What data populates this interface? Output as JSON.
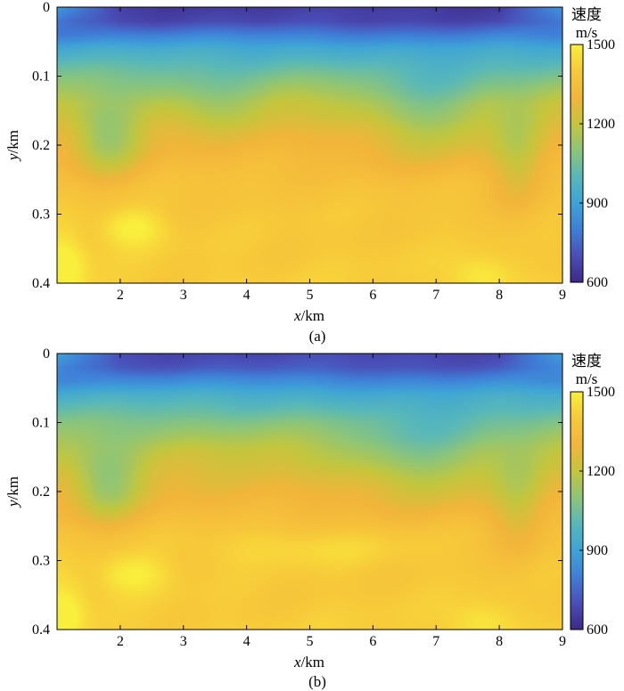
{
  "colors": {
    "colormap": [
      "#3e2a87",
      "#4a4fb8",
      "#3f7fd8",
      "#3ea4d6",
      "#58b8b9",
      "#8cc57a",
      "#c4c63d",
      "#f2b53a",
      "#f7c93a",
      "#f9ee3b"
    ],
    "axis": "#000000"
  },
  "chart_data": [
    {
      "type": "heatmap",
      "panel_label": "(a)",
      "xlabel": {
        "var": "x",
        "unit": "/km"
      },
      "ylabel": {
        "var": "y",
        "unit": "/km"
      },
      "xlim": [
        1,
        9
      ],
      "ylim": [
        0,
        0.4
      ],
      "y_reversed": true,
      "xticks": [
        2,
        3,
        4,
        5,
        6,
        7,
        8,
        9
      ],
      "yticks": [
        "0",
        "0.1",
        "0.2",
        "0.3",
        "0.4"
      ],
      "colorbar": {
        "title": "速度",
        "unit": "m/s",
        "range": [
          600,
          1500
        ],
        "ticks": [
          600,
          900,
          1200,
          1500
        ]
      },
      "field": {
        "description_free": true,
        "profile_depth_km": [
          0,
          0.02,
          0.06,
          0.1,
          0.14,
          0.18,
          0.22,
          0.26,
          0.3,
          0.35,
          0.4
        ],
        "profile_velocity_ms": [
          650,
          680,
          930,
          1080,
          1220,
          1290,
          1330,
          1370,
          1390,
          1400,
          1410
        ],
        "anomalies": [
          {
            "x": 2.2,
            "y": 0.32,
            "dv": 120,
            "sx": 0.35,
            "sy": 0.02
          },
          {
            "x": 1.1,
            "y": 0.38,
            "dv": 140,
            "sx": 0.25,
            "sy": 0.04
          },
          {
            "x": 7.7,
            "y": 0.39,
            "dv": 90,
            "sx": 0.35,
            "sy": 0.02
          },
          {
            "x": 1.8,
            "y": 0.19,
            "dv": -180,
            "sx": 0.4,
            "sy": 0.04
          },
          {
            "x": 6.9,
            "y": 0.15,
            "dv": -140,
            "sx": 0.7,
            "sy": 0.05
          },
          {
            "x": 8.3,
            "y": 0.22,
            "dv": -120,
            "sx": 0.3,
            "sy": 0.06
          },
          {
            "x": 3.5,
            "y": 0.14,
            "dv": -90,
            "sx": 0.6,
            "sy": 0.03
          }
        ]
      }
    },
    {
      "type": "heatmap",
      "panel_label": "(b)",
      "xlabel": {
        "var": "x",
        "unit": "/km"
      },
      "ylabel": {
        "var": "y",
        "unit": "/km"
      },
      "xlim": [
        1,
        9
      ],
      "ylim": [
        0,
        0.4
      ],
      "y_reversed": true,
      "xticks": [
        2,
        3,
        4,
        5,
        6,
        7,
        8,
        9
      ],
      "yticks": [
        "0",
        "0.1",
        "0.2",
        "0.3",
        "0.4"
      ],
      "colorbar": {
        "title": "速度",
        "unit": "m/s",
        "range": [
          600,
          1500
        ],
        "ticks": [
          600,
          900,
          1200,
          1500
        ]
      },
      "field": {
        "profile_depth_km": [
          0,
          0.02,
          0.06,
          0.1,
          0.14,
          0.18,
          0.22,
          0.26,
          0.3,
          0.35,
          0.4
        ],
        "profile_velocity_ms": [
          680,
          720,
          950,
          1090,
          1200,
          1270,
          1320,
          1370,
          1390,
          1400,
          1410
        ],
        "anomalies": [
          {
            "x": 2.2,
            "y": 0.32,
            "dv": 110,
            "sx": 0.4,
            "sy": 0.02
          },
          {
            "x": 4.8,
            "y": 0.28,
            "dv": 60,
            "sx": 1.4,
            "sy": 0.02
          },
          {
            "x": 1.1,
            "y": 0.38,
            "dv": 130,
            "sx": 0.25,
            "sy": 0.04
          },
          {
            "x": 7.7,
            "y": 0.39,
            "dv": 80,
            "sx": 0.35,
            "sy": 0.02
          },
          {
            "x": 1.8,
            "y": 0.19,
            "dv": -170,
            "sx": 0.4,
            "sy": 0.04
          },
          {
            "x": 6.8,
            "y": 0.14,
            "dv": -130,
            "sx": 0.8,
            "sy": 0.05
          },
          {
            "x": 8.3,
            "y": 0.22,
            "dv": -100,
            "sx": 0.3,
            "sy": 0.06
          }
        ]
      }
    }
  ]
}
